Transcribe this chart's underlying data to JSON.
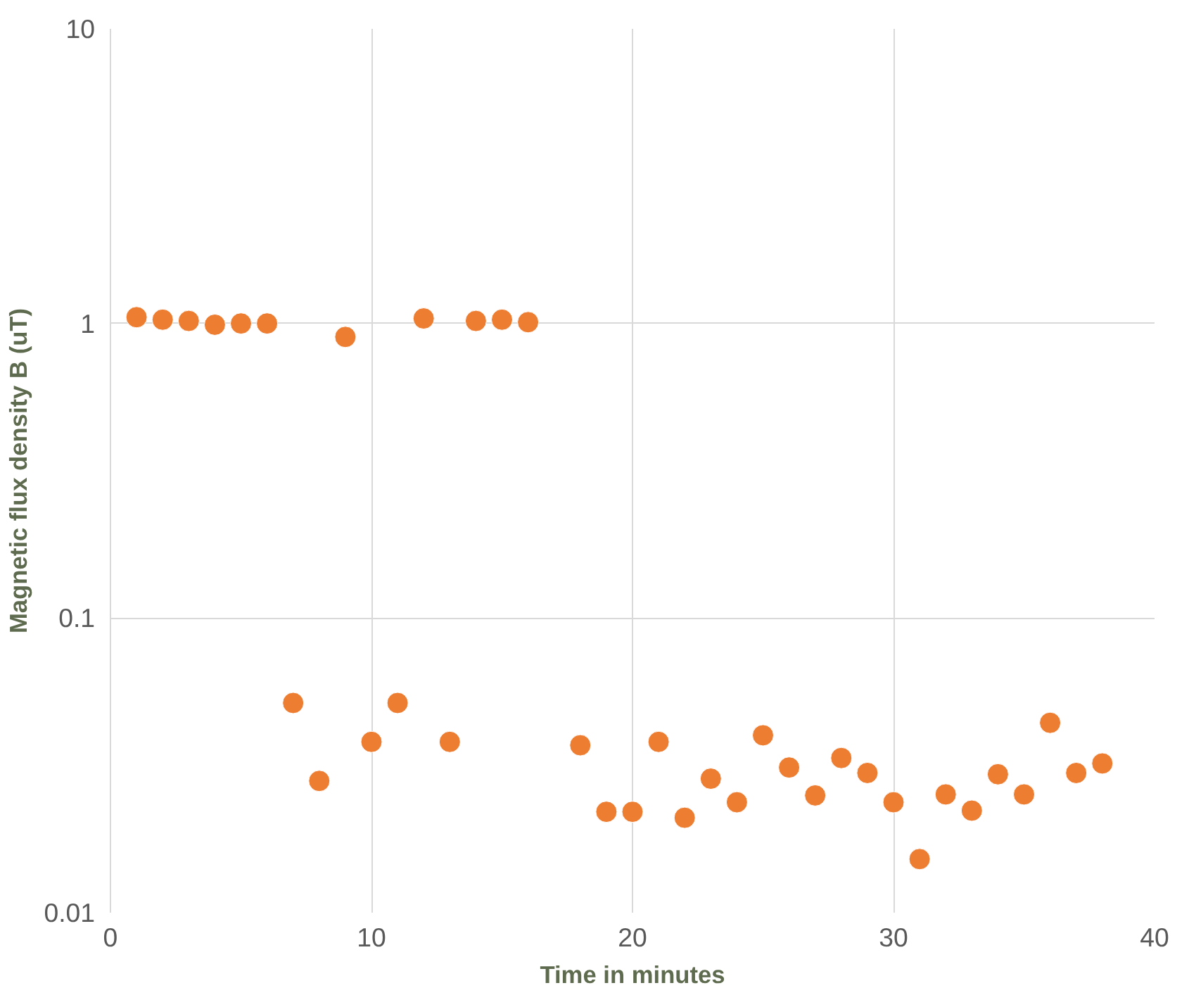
{
  "chart_data": {
    "type": "scatter",
    "xlabel": "Time in minutes",
    "ylabel": "Magnetic flux density B (uT)",
    "log": "y",
    "grid": true,
    "marker": "circle",
    "xlim": [
      0,
      40
    ],
    "xticks": [
      0,
      10,
      20,
      30,
      40
    ],
    "ylim": [
      0.01,
      10
    ],
    "yticks": [
      0.01,
      0.1,
      1,
      10
    ],
    "series": [
      {
        "color": "#ed7d31",
        "x": [
          1,
          2,
          3,
          4,
          5,
          6,
          7,
          8,
          9,
          10,
          11,
          12,
          13,
          14,
          15,
          16,
          18,
          19,
          20,
          21,
          22,
          23,
          24,
          25,
          26,
          27,
          28,
          29,
          30,
          31,
          32,
          33,
          34,
          35,
          36,
          37,
          38
        ],
        "values": [
          1.05,
          1.03,
          1.02,
          0.99,
          1.0,
          1.0,
          0.0515,
          0.028,
          0.9,
          0.038,
          0.0515,
          1.04,
          0.038,
          1.02,
          1.03,
          1.01,
          0.037,
          0.022,
          0.022,
          0.038,
          0.021,
          0.0285,
          0.0237,
          0.04,
          0.0311,
          0.025,
          0.0335,
          0.0298,
          0.0237,
          0.0152,
          0.0252,
          0.0222,
          0.0295,
          0.0252,
          0.0441,
          0.0298,
          0.0321
        ]
      }
    ]
  }
}
